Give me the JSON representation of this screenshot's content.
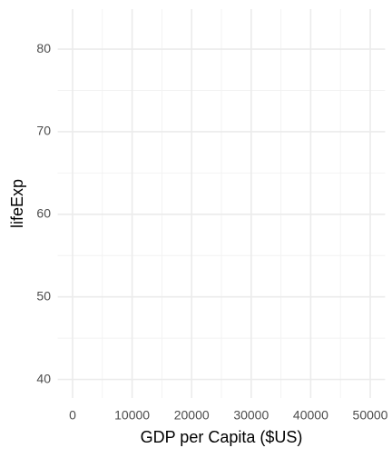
{
  "chart_data": {
    "type": "scatter",
    "x_label": "GDP per Capita ($US)",
    "y_label": "lifeExp",
    "xlim": [
      -2500,
      52500
    ],
    "xticks": [
      0,
      10000,
      20000,
      30000,
      40000,
      50000
    ],
    "x_minor_ticks": [
      5000,
      15000,
      25000,
      35000,
      45000
    ],
    "ylim": [
      37.75,
      84.85
    ],
    "yticks": [
      40,
      50,
      60,
      70,
      80
    ],
    "y_minor_ticks": [
      45,
      55,
      65,
      75
    ],
    "grid": true,
    "series": []
  }
}
